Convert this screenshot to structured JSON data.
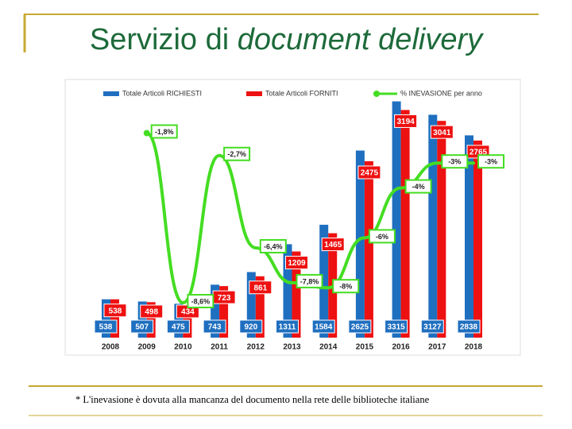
{
  "title": {
    "plain": "Servizio di",
    "italic": "document delivery"
  },
  "chart_data": {
    "type": "bar",
    "categories": [
      "2008",
      "2009",
      "2010",
      "2011",
      "2012",
      "2013",
      "2014",
      "2015",
      "2016",
      "2017",
      "2018"
    ],
    "series": [
      {
        "name": "Totale Articoli RICHIESTI",
        "color": "#1f6fc0",
        "values": [
          538,
          507,
          475,
          743,
          920,
          1311,
          1584,
          2625,
          3315,
          3127,
          2838
        ]
      },
      {
        "name": "Totale Articoli FORNITI",
        "color": "#ee1111",
        "values": [
          538,
          498,
          434,
          723,
          861,
          1209,
          1465,
          2475,
          3194,
          3041,
          2765
        ]
      },
      {
        "name": "% INEVASIONE per anno",
        "color": "#44dd22",
        "type": "line",
        "axis": "y2",
        "values": [
          null,
          -1.8,
          -8.6,
          -2.7,
          -6.4,
          -7.8,
          -8,
          -6,
          -4,
          -3,
          -3
        ],
        "value_labels": [
          null,
          "-1,8%",
          "-8,6%",
          "-2,7%",
          "-6,4%",
          "-7,8%",
          "-8%",
          "-6%",
          "-4%",
          "-3%",
          "-3%"
        ]
      }
    ],
    "ylim": [
      0,
      3500
    ],
    "y2lim": [
      0,
      -10
    ],
    "legend": "top"
  },
  "footnote": "* L'inevasione è dovuta alla mancanza del documento nella rete delle biblioteche italiane"
}
